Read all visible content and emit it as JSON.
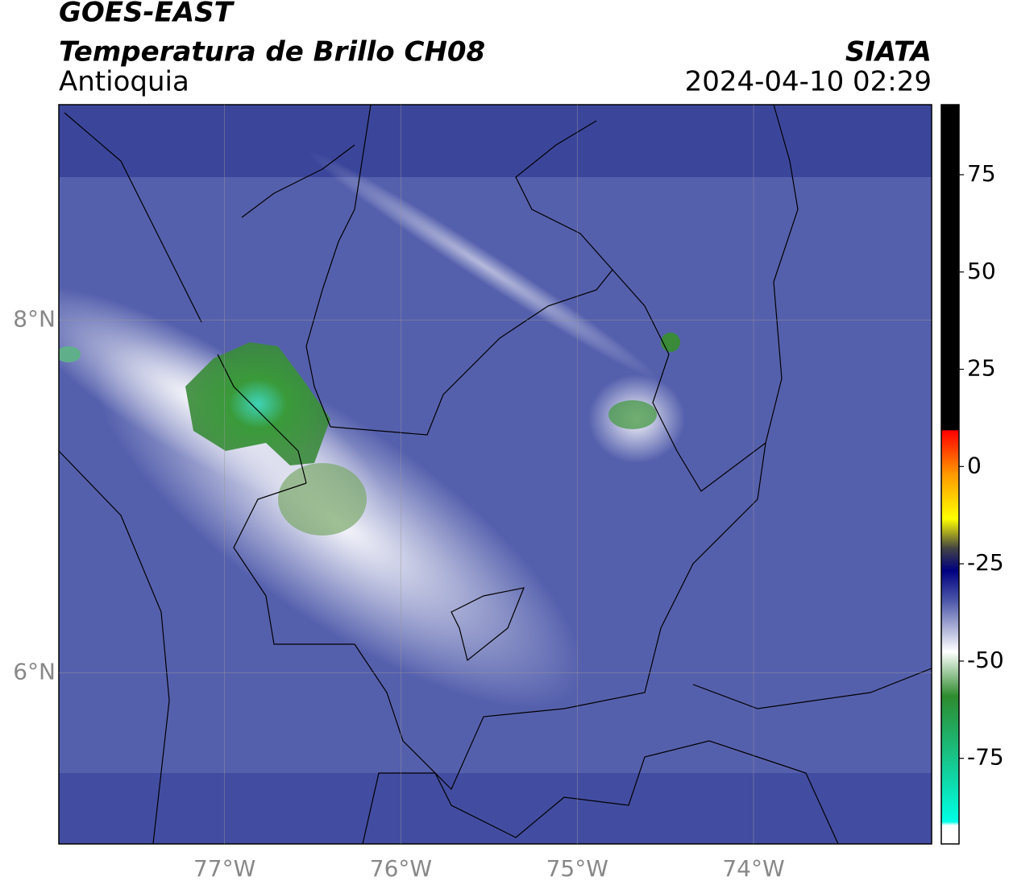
{
  "header": {
    "title": "GOES-EAST",
    "subtitle": "Temperatura de Brillo CH08",
    "region": "Antioquia",
    "source": "SIATA",
    "datetime": "2024-04-10 02:29"
  },
  "chart_data": {
    "type": "map",
    "xlim": [
      -77.94,
      -72.99
    ],
    "ylim": [
      5.03,
      9.22
    ],
    "xticks": [
      {
        "value": -77,
        "label": "77°W"
      },
      {
        "value": -76,
        "label": "76°W"
      },
      {
        "value": -75,
        "label": "75°W"
      },
      {
        "value": -74,
        "label": "74°W"
      }
    ],
    "yticks": [
      {
        "value": 8,
        "label": "8°N"
      },
      {
        "value": 6,
        "label": "6°N"
      }
    ],
    "grid": true,
    "colorbar": {
      "lim": [
        -97,
        93
      ],
      "ticks": [
        75,
        50,
        25,
        0,
        -25,
        -50,
        -75
      ]
    }
  }
}
